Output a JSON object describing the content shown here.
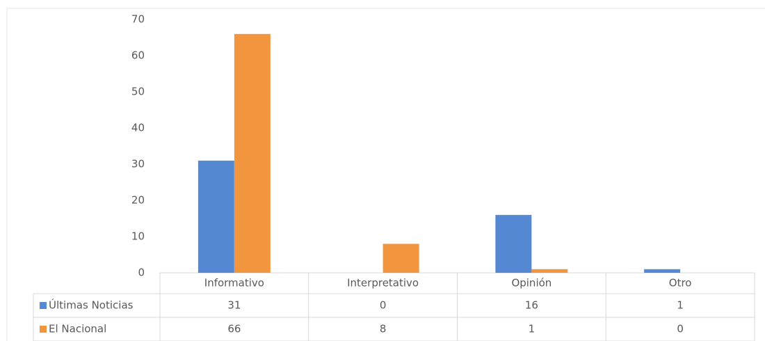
{
  "chart_data": {
    "type": "bar",
    "categories": [
      "Informativo",
      "Interpretativo",
      "Opinión",
      "Otro"
    ],
    "series": [
      {
        "name": "Últimas Noticias",
        "color": "#5589d3",
        "values": [
          31,
          0,
          16,
          1
        ]
      },
      {
        "name": "El Nacional",
        "color": "#f2953f",
        "values": [
          66,
          8,
          1,
          0
        ]
      }
    ],
    "ylim": [
      0,
      70
    ],
    "yticks": [
      0,
      10,
      20,
      30,
      40,
      50,
      60,
      70
    ],
    "grid": false,
    "legend": "table"
  }
}
